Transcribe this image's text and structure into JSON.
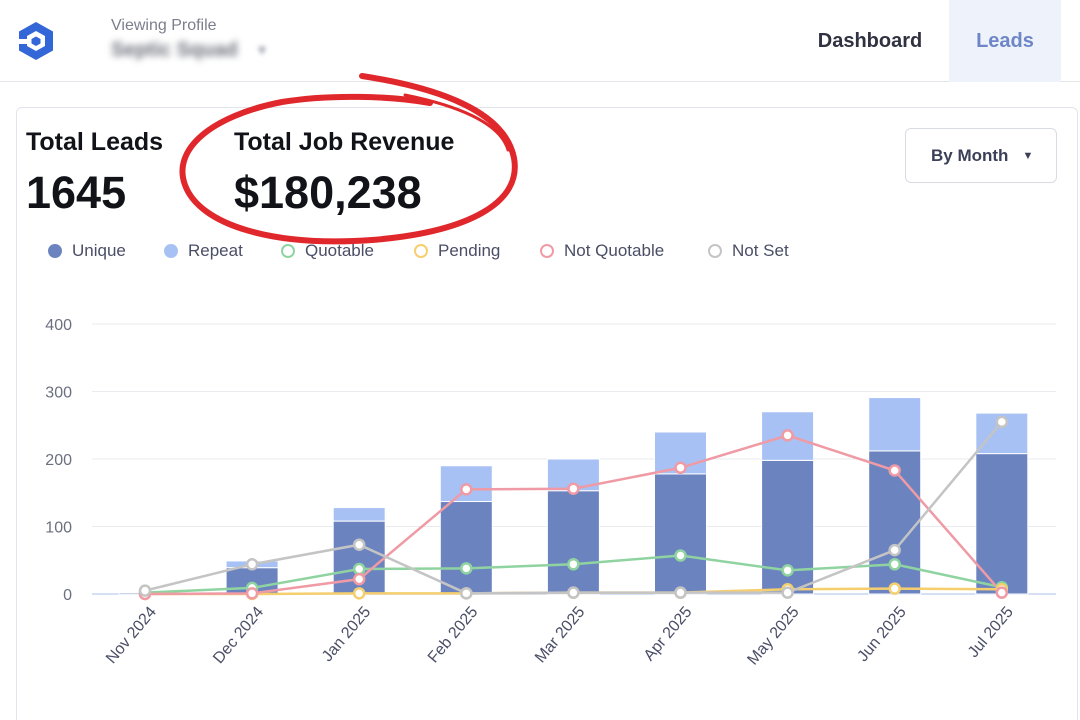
{
  "header": {
    "viewing_label": "Viewing Profile",
    "profile_name": "Septic Squad",
    "nav": [
      {
        "label": "Dashboard"
      },
      {
        "label": "Leads"
      }
    ]
  },
  "kpis": {
    "total_leads_label": "Total Leads",
    "total_leads_value": "1645",
    "total_revenue_label": "Total Job Revenue",
    "total_revenue_value": "$180,238"
  },
  "controls": {
    "period_select": "By Month"
  },
  "colors": {
    "unique": "#6b84c0",
    "repeat": "#a8c1f4",
    "quotable": "#8fd4a0",
    "pending": "#f5cf6e",
    "not_quotable": "#ef9aa4",
    "not_set": "#c4c4c4",
    "annotation": "#e0282c",
    "accent": "#6e86c7"
  },
  "chart_data": {
    "type": "bar",
    "categories": [
      "Nov 2024",
      "Dec 2024",
      "Jan 2025",
      "Feb 2025",
      "Mar 2025",
      "Apr 2025",
      "May 2025",
      "Jun 2025",
      "Jul 2025"
    ],
    "ylim": [
      0,
      400
    ],
    "yticks": [
      0,
      100,
      200,
      300,
      400
    ],
    "grid": true,
    "legend_position": "top-left",
    "stacked": true,
    "series": [
      {
        "name": "Unique",
        "kind": "bar",
        "color_key": "unique",
        "values": [
          2,
          39,
          108,
          137,
          153,
          178,
          198,
          212,
          208
        ]
      },
      {
        "name": "Repeat",
        "kind": "bar",
        "color_key": "repeat",
        "values": [
          0,
          10,
          20,
          53,
          47,
          62,
          72,
          79,
          60
        ]
      },
      {
        "name": "Quotable",
        "kind": "line",
        "color_key": "quotable",
        "values": [
          2,
          9,
          37,
          38,
          44,
          57,
          35,
          44,
          10
        ]
      },
      {
        "name": "Pending",
        "kind": "line",
        "color_key": "pending",
        "values": [
          0,
          0,
          1,
          1,
          2,
          2,
          7,
          8,
          7
        ]
      },
      {
        "name": "Not Quotable",
        "kind": "line",
        "color_key": "not_quotable",
        "values": [
          0,
          1,
          22,
          155,
          156,
          187,
          235,
          183,
          2
        ]
      },
      {
        "name": "Not Set",
        "kind": "line",
        "color_key": "not_set",
        "values": [
          5,
          44,
          73,
          1,
          2,
          2,
          2,
          65,
          255
        ]
      }
    ]
  }
}
